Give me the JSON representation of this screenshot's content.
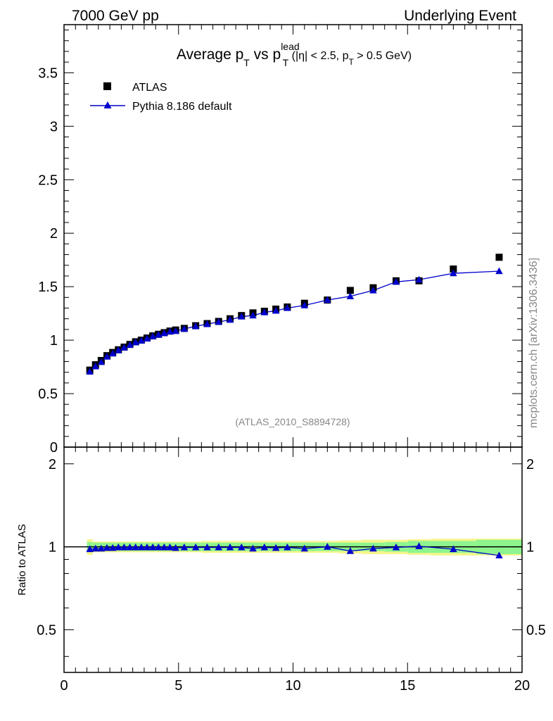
{
  "header": {
    "left": "7000 GeV pp",
    "right": "Underlying Event"
  },
  "title": {
    "main": "Average p",
    "sub1": "T",
    "vs": " vs p",
    "sup": "lead",
    "sub2": "T",
    "cuts_open": " (|η| < 2.5, p",
    "cuts_sub": "T",
    "cuts_close": " > 0.5 GeV)"
  },
  "watermark": "(ATLAS_2010_S8894728)",
  "side_label": "mcplots.cern.ch [arXiv:1306.3436]",
  "colors": {
    "data": "#000000",
    "mc": "#0000cc",
    "band_inner": "#8ef58e",
    "band_outer": "#f5f58c"
  },
  "chart_data": [
    {
      "type": "scatter",
      "panel": "main",
      "xlim": [
        0,
        20
      ],
      "ylim": [
        0,
        3.95
      ],
      "yticks": [
        "0",
        "0.5",
        "1",
        "1.5",
        "2",
        "2.5",
        "3",
        "3.5"
      ],
      "legend_position": "top-left",
      "legend": [
        {
          "name": "ATLAS",
          "marker": "square",
          "color": "#000000"
        },
        {
          "name": "Pythia 8.186 default",
          "marker": "triangle",
          "color": "#0000cc"
        }
      ],
      "x": [
        1.125,
        1.375,
        1.625,
        1.875,
        2.125,
        2.375,
        2.625,
        2.875,
        3.125,
        3.375,
        3.625,
        3.875,
        4.125,
        4.375,
        4.625,
        4.875,
        5.25,
        5.75,
        6.25,
        6.75,
        7.25,
        7.75,
        8.25,
        8.75,
        9.25,
        9.75,
        10.5,
        11.5,
        12.5,
        13.5,
        14.5,
        15.5,
        17.0,
        19.0
      ],
      "series": [
        {
          "name": "ATLAS",
          "values": [
            0.72,
            0.77,
            0.81,
            0.855,
            0.885,
            0.91,
            0.935,
            0.96,
            0.985,
            1.0,
            1.02,
            1.04,
            1.055,
            1.07,
            1.085,
            1.095,
            1.11,
            1.135,
            1.155,
            1.175,
            1.2,
            1.23,
            1.255,
            1.27,
            1.29,
            1.31,
            1.345,
            1.375,
            1.465,
            1.49,
            1.555,
            1.555,
            1.665,
            1.775
          ]
        },
        {
          "name": "Pythia 8.186 default",
          "values": [
            0.705,
            0.755,
            0.795,
            0.845,
            0.875,
            0.905,
            0.93,
            0.955,
            0.98,
            0.995,
            1.015,
            1.035,
            1.05,
            1.065,
            1.08,
            1.085,
            1.105,
            1.13,
            1.15,
            1.17,
            1.19,
            1.22,
            1.23,
            1.26,
            1.275,
            1.3,
            1.325,
            1.375,
            1.41,
            1.465,
            1.545,
            1.565,
            1.625,
            1.645
          ]
        }
      ]
    },
    {
      "type": "line",
      "panel": "ratio",
      "ylabel": "Ratio to ATLAS",
      "xlim": [
        0,
        20
      ],
      "ylim": [
        0.35,
        2.3
      ],
      "xticks": [
        "0",
        "5",
        "10",
        "15",
        "20"
      ],
      "yticks": [
        "0.5",
        "1",
        "2"
      ],
      "reference": 1,
      "bin_edges": [
        1.0,
        1.25,
        1.5,
        1.75,
        2.0,
        2.25,
        2.5,
        2.75,
        3.0,
        3.25,
        3.5,
        3.75,
        4.0,
        4.25,
        4.5,
        4.75,
        5.0,
        5.5,
        6.0,
        6.5,
        7.0,
        7.5,
        8.0,
        8.5,
        9.0,
        9.5,
        10.0,
        11.0,
        12.0,
        13.0,
        14.0,
        15.0,
        16.0,
        18.0,
        20.0
      ],
      "band_inner": [
        0.04,
        0.035,
        0.035,
        0.035,
        0.035,
        0.035,
        0.035,
        0.035,
        0.035,
        0.035,
        0.035,
        0.035,
        0.035,
        0.035,
        0.035,
        0.035,
        0.035,
        0.035,
        0.035,
        0.035,
        0.035,
        0.035,
        0.035,
        0.035,
        0.035,
        0.035,
        0.035,
        0.035,
        0.035,
        0.035,
        0.04,
        0.05,
        0.05,
        0.06
      ],
      "band_outer": [
        0.065,
        0.045,
        0.045,
        0.045,
        0.045,
        0.045,
        0.045,
        0.045,
        0.045,
        0.045,
        0.045,
        0.045,
        0.045,
        0.045,
        0.045,
        0.045,
        0.045,
        0.045,
        0.05,
        0.05,
        0.05,
        0.05,
        0.05,
        0.05,
        0.05,
        0.05,
        0.05,
        0.05,
        0.055,
        0.06,
        0.06,
        0.065,
        0.07,
        0.07
      ],
      "x": [
        1.125,
        1.375,
        1.625,
        1.875,
        2.125,
        2.375,
        2.625,
        2.875,
        3.125,
        3.375,
        3.625,
        3.875,
        4.125,
        4.375,
        4.625,
        4.875,
        5.25,
        5.75,
        6.25,
        6.75,
        7.25,
        7.75,
        8.25,
        8.75,
        9.25,
        9.75,
        10.5,
        11.5,
        12.5,
        13.5,
        14.5,
        15.5,
        17.0,
        19.0
      ],
      "series": [
        {
          "name": "Pythia 8.186 default",
          "values": [
            0.98,
            0.985,
            0.985,
            0.99,
            0.99,
            0.995,
            0.995,
            0.995,
            0.995,
            0.995,
            0.995,
            0.995,
            0.995,
            0.995,
            0.995,
            0.99,
            0.995,
            0.995,
            0.995,
            0.995,
            0.995,
            0.995,
            0.985,
            0.995,
            0.99,
            0.995,
            0.985,
            1.0,
            0.965,
            0.985,
            0.995,
            1.005,
            0.98,
            0.93
          ]
        }
      ]
    }
  ]
}
